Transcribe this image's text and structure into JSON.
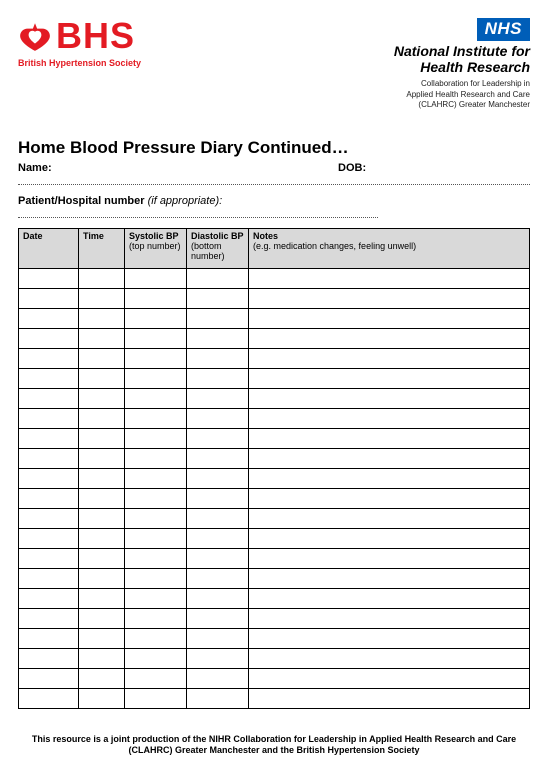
{
  "logos": {
    "bhs": {
      "name": "BHS",
      "subtitle": "British Hypertension Society",
      "color": "#e31b23"
    },
    "nhs": {
      "badge": "NHS",
      "title_line1": "National Institute for",
      "title_line2": "Health Research",
      "sub_line1": "Collaboration for Leadership in",
      "sub_line2": "Applied Health Research and Care",
      "sub_line3": "(CLAHRC) Greater Manchester",
      "badge_bg": "#005eb8"
    }
  },
  "title": "Home Blood Pressure Diary Continued…",
  "fields": {
    "name_label": "Name:",
    "dob_label": "DOB:",
    "patient_label": "Patient/Hospital number",
    "patient_hint": "(if appropriate):"
  },
  "table": {
    "columns": [
      {
        "header": "Date",
        "sub": ""
      },
      {
        "header": "Time",
        "sub": ""
      },
      {
        "header": "Systolic BP",
        "sub": "(top number)"
      },
      {
        "header": "Diastolic BP",
        "sub": "(bottom number)"
      },
      {
        "header": "Notes",
        "sub": "(e.g. medication changes, feeling unwell)"
      }
    ],
    "row_count": 22,
    "header_bg": "#d9d9d9",
    "border_color": "#000000"
  },
  "footer": "This resource is a joint production of the NIHR Collaboration for Leadership in Applied Health Research and Care (CLAHRC) Greater Manchester and the British Hypertension Society"
}
